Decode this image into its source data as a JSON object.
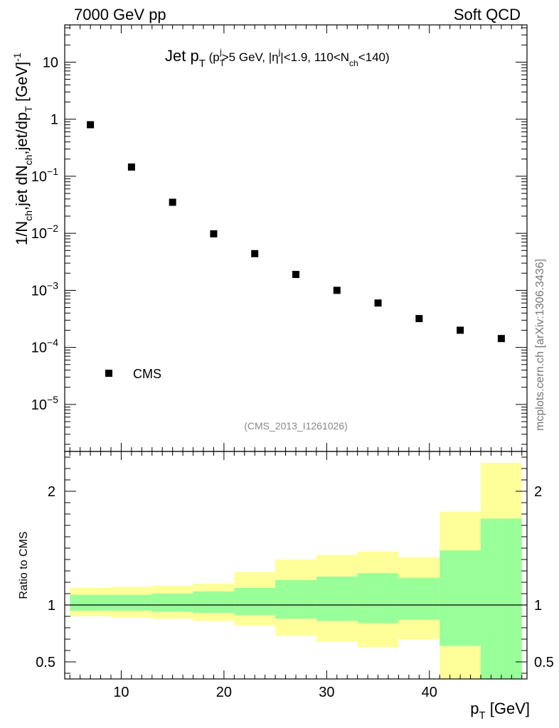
{
  "header": {
    "left": "7000 GeV pp",
    "right": "Soft QCD"
  },
  "watermark": "mcplots.cern.ch [arXiv:1306.3436]",
  "chart_data": [
    {
      "type": "scatter",
      "panel": "main",
      "title": "Jet p_T (p_T^j>5 GeV, |η^j|<1.9, 110<N_ch<140)",
      "title_parts": {
        "main": "Jet p",
        "main_sub": "T",
        "a": " (p",
        "a_sub": "T",
        "a_sup": "j",
        "b": ">5 GeV, |η",
        "b_sup": "j",
        "c": "|<1.9, 110<N",
        "c_sub": "ch",
        "d": "<140)"
      },
      "ylabel": "1/N_ch,jet dN_ch,jet/dp_T [GeV]^-1",
      "ylabel_parts": {
        "a": "1/N",
        "a_sub": "ch",
        "b": ",jet dN",
        "b_sub": "ch",
        "c": ",jet/dp",
        "c_sub": "T",
        "d": " [GeV]",
        "d_sup": "-1"
      },
      "yscale": "log",
      "ylim": [
        1.5e-06,
        45
      ],
      "xlim": [
        4.5,
        49.5
      ],
      "yticks": [
        {
          "value": 10,
          "base": "10",
          "exp": ""
        },
        {
          "value": 1,
          "base": "1",
          "exp": ""
        },
        {
          "value": 0.1,
          "base": "10",
          "exp": "−1"
        },
        {
          "value": 0.01,
          "base": "10",
          "exp": "−2"
        },
        {
          "value": 0.001,
          "base": "10",
          "exp": "−3"
        },
        {
          "value": 0.0001,
          "base": "10",
          "exp": "−4"
        },
        {
          "value": 1e-05,
          "base": "10",
          "exp": "−5"
        }
      ],
      "series": [
        {
          "name": "CMS",
          "marker": "square",
          "x": [
            7,
            11,
            15,
            19,
            23,
            27,
            31,
            35,
            39,
            43,
            47
          ],
          "y": [
            0.8,
            0.145,
            0.035,
            0.0098,
            0.0044,
            0.0019,
            0.001,
            0.0006,
            0.00032,
            0.0002,
            0.000143
          ]
        }
      ],
      "legend": {
        "label": "CMS",
        "placement": "bottom-left"
      },
      "annotation": "(CMS_2013_I1261026)"
    },
    {
      "type": "area",
      "panel": "ratio",
      "ylabel": "Ratio to CMS",
      "xlabel": "p_T [GeV]",
      "xlabel_parts": {
        "a": "p",
        "a_sub": "T",
        "b": " [GeV]"
      },
      "xlim": [
        4.5,
        49.5
      ],
      "ylim": [
        0.35,
        2.35
      ],
      "reference_line": 1,
      "yticks": [
        0.5,
        1,
        2
      ],
      "ytick_labels": [
        "0.5",
        "1",
        "2"
      ],
      "xticks": [
        10,
        20,
        30,
        40
      ],
      "xtick_labels": [
        "10",
        "20",
        "30",
        "40"
      ],
      "bins": [
        {
          "x_low": 5,
          "x_high": 9,
          "yellow": [
            0.9,
            1.15
          ],
          "green": [
            0.95,
            1.09
          ]
        },
        {
          "x_low": 9,
          "x_high": 13,
          "yellow": [
            0.89,
            1.16
          ],
          "green": [
            0.95,
            1.09
          ]
        },
        {
          "x_low": 13,
          "x_high": 17,
          "yellow": [
            0.88,
            1.17
          ],
          "green": [
            0.94,
            1.1
          ]
        },
        {
          "x_low": 17,
          "x_high": 21,
          "yellow": [
            0.86,
            1.19
          ],
          "green": [
            0.93,
            1.12
          ]
        },
        {
          "x_low": 21,
          "x_high": 25,
          "yellow": [
            0.82,
            1.29
          ],
          "green": [
            0.91,
            1.15
          ]
        },
        {
          "x_low": 25,
          "x_high": 29,
          "yellow": [
            0.73,
            1.4
          ],
          "green": [
            0.88,
            1.22
          ]
        },
        {
          "x_low": 29,
          "x_high": 33,
          "yellow": [
            0.68,
            1.44
          ],
          "green": [
            0.86,
            1.25
          ]
        },
        {
          "x_low": 33,
          "x_high": 37,
          "yellow": [
            0.63,
            1.47
          ],
          "green": [
            0.84,
            1.28
          ]
        },
        {
          "x_low": 37,
          "x_high": 41,
          "yellow": [
            0.7,
            1.42
          ],
          "green": [
            0.87,
            1.24
          ]
        },
        {
          "x_low": 41,
          "x_high": 45,
          "yellow": [
            0.35,
            1.82
          ],
          "green": [
            0.64,
            1.48
          ]
        },
        {
          "x_low": 45,
          "x_high": 49,
          "yellow": [
            0.35,
            2.25
          ],
          "green": [
            0.35,
            1.76
          ]
        }
      ]
    }
  ],
  "colors": {
    "yellow_band": "#ffff99",
    "green_band": "#99ff99",
    "marker": "#000000",
    "annotation": "#888888",
    "watermark": "#777777"
  }
}
